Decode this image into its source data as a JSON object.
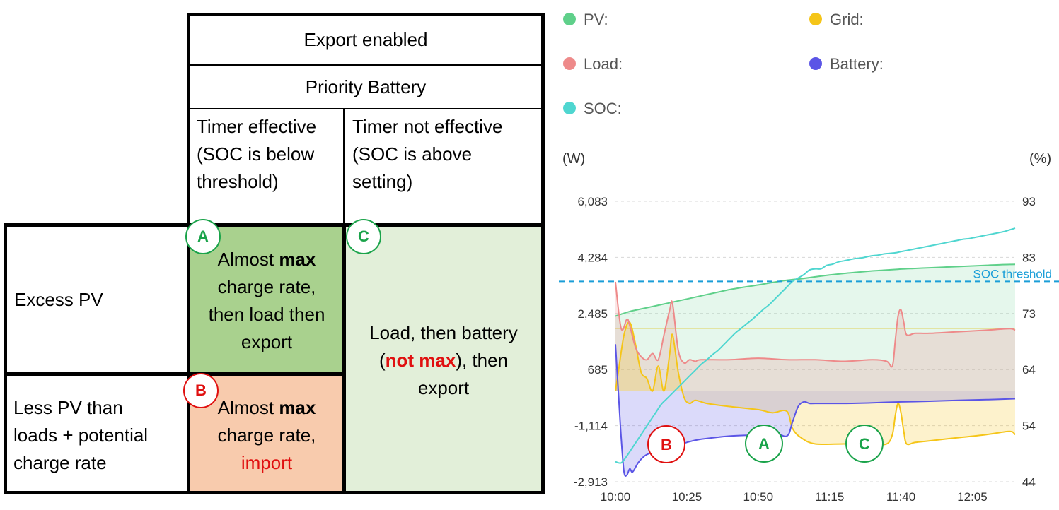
{
  "table": {
    "header_top": "Export enabled",
    "header_priority": "Priority Battery",
    "col_timer_effective": [
      "Timer effective",
      "(SOC is below",
      "threshold)"
    ],
    "col_timer_not_effective": [
      "Timer not effective",
      "(SOC is above",
      "setting)"
    ],
    "row_excess_pv": "Excess PV",
    "row_less_pv": [
      "Less PV than",
      "loads + potential",
      "charge rate"
    ],
    "cell_a": {
      "l1": "Almost ",
      "l1_bold": "max",
      "l2": "charge rate,",
      "l3": "then load then",
      "l4": "export"
    },
    "cell_b": {
      "l1": "Almost ",
      "l1_bold": "max",
      "l2": "charge rate,",
      "l3": "import"
    },
    "cell_c": {
      "l1": "Load, then battery",
      "l2_pre": "(",
      "l2_red": "not max",
      "l2_post": "), then",
      "l3": "export"
    },
    "badges": {
      "a": "A",
      "b": "B",
      "c": "C"
    },
    "colors": {
      "cell_a": "#a9d18e",
      "cell_b": "#f8cbad",
      "cell_c": "#e2efd9"
    }
  },
  "chart_data": {
    "type": "area",
    "legend": [
      {
        "label": "PV:",
        "color": "#5fd08a"
      },
      {
        "label": "Grid:",
        "color": "#f5c518"
      },
      {
        "label": "Load:",
        "color": "#ee8a8a"
      },
      {
        "label": "Battery:",
        "color": "#5b55e6"
      },
      {
        "label": "SOC:",
        "color": "#4fd6d0"
      }
    ],
    "ylabel_left": "(W)",
    "ylabel_right": "(%)",
    "yticks_left": [
      "6,083",
      "4,284",
      "2,485",
      "685",
      "-1,114",
      "-2,913"
    ],
    "yticks_right": [
      "93",
      "83",
      "73",
      "64",
      "54",
      "44"
    ],
    "ylim_left": [
      -2913,
      6083
    ],
    "ylim_right": [
      44,
      93
    ],
    "x_ticks": [
      "10:00",
      "10:25",
      "10:50",
      "11:15",
      "11:40",
      "12:05"
    ],
    "soc_threshold_label": "SOC threshold",
    "soc_threshold_value": 79,
    "annotations": [
      {
        "label": "B",
        "color": "#e01010"
      },
      {
        "label": "A",
        "color": "#1aa34a"
      },
      {
        "label": "C",
        "color": "#1aa34a"
      }
    ],
    "series": [
      {
        "name": "PV",
        "color": "#5fd08a",
        "x": [
          0,
          5,
          10,
          15,
          20,
          25,
          30,
          35,
          40,
          45,
          50,
          55,
          60,
          65,
          70,
          75,
          80,
          85,
          90,
          95,
          100,
          105,
          110,
          115,
          120,
          125,
          130,
          135,
          140
        ],
        "y": [
          2400,
          2550,
          2650,
          2750,
          2850,
          2950,
          3050,
          3150,
          3250,
          3330,
          3400,
          3480,
          3550,
          3600,
          3660,
          3720,
          3770,
          3810,
          3850,
          3880,
          3910,
          3930,
          3950,
          3970,
          3990,
          4010,
          4030,
          4050,
          4060
        ]
      },
      {
        "name": "Grid",
        "color": "#f5c518",
        "x": [
          0,
          1,
          3,
          5,
          7,
          9,
          11,
          13,
          15,
          17,
          19,
          20,
          22,
          24,
          26,
          28,
          32,
          40,
          50,
          55,
          60,
          62,
          65,
          70,
          80,
          90,
          95,
          97,
          98,
          99,
          100,
          101,
          102,
          105,
          110,
          120,
          130,
          138,
          140
        ],
        "y": [
          0,
          600,
          1800,
          2200,
          1500,
          600,
          400,
          0,
          800,
          0,
          1200,
          1800,
          600,
          -200,
          -400,
          -300,
          -400,
          -500,
          -600,
          -700,
          -650,
          -1200,
          -1500,
          -1700,
          -1700,
          -1700,
          -1700,
          -1400,
          -800,
          -400,
          -700,
          -1300,
          -1700,
          -1650,
          -1600,
          -1500,
          -1400,
          -1300,
          -1400
        ]
      },
      {
        "name": "Load",
        "color": "#ee8a8a",
        "x": [
          0,
          2,
          4,
          5,
          7,
          9,
          11,
          13,
          15,
          17,
          19,
          20,
          22,
          24,
          26,
          28,
          30,
          40,
          50,
          60,
          70,
          80,
          90,
          95,
          97,
          98,
          99,
          100,
          101,
          102,
          105,
          110,
          120,
          130,
          138,
          140
        ],
        "y": [
          3500,
          2000,
          2300,
          2100,
          1400,
          1100,
          1000,
          1200,
          1000,
          1800,
          2600,
          2800,
          1300,
          900,
          1000,
          950,
          1000,
          1000,
          1050,
          1000,
          1000,
          950,
          1000,
          950,
          800,
          1600,
          2400,
          2600,
          2200,
          1800,
          1850,
          1850,
          1900,
          1950,
          2000,
          1950
        ]
      },
      {
        "name": "Battery",
        "color": "#5b55e6",
        "x": [
          0,
          1,
          2,
          3,
          4,
          5,
          6,
          8,
          10,
          12,
          15,
          20,
          25,
          30,
          40,
          50,
          55,
          60,
          62,
          64,
          66,
          68,
          70,
          80,
          90,
          100,
          110,
          120,
          130,
          140
        ],
        "y": [
          1500,
          0,
          -1500,
          -2600,
          -2700,
          -2500,
          -2600,
          -2300,
          -2100,
          -2000,
          -1900,
          -1800,
          -1650,
          -1550,
          -1450,
          -1400,
          -1300,
          -1450,
          -1000,
          -500,
          -350,
          -400,
          -400,
          -400,
          -380,
          -350,
          -330,
          -300,
          -280,
          -250
        ]
      },
      {
        "name": "SOC",
        "color": "#4fd6d0",
        "x": [
          0,
          2,
          4,
          6,
          8,
          10,
          12,
          14,
          16,
          18,
          20,
          22,
          24,
          26,
          28,
          30,
          32,
          34,
          36,
          38,
          40,
          42,
          44,
          46,
          48,
          50,
          52,
          54,
          56,
          58,
          60,
          62,
          64,
          66,
          68,
          70,
          72,
          74,
          76,
          78,
          80,
          82,
          84,
          86,
          88,
          90,
          92,
          94,
          96,
          98,
          100,
          102,
          104,
          106,
          108,
          110,
          112,
          114,
          116,
          118,
          120,
          122,
          124,
          126,
          128,
          130,
          132,
          134,
          136,
          138,
          140
        ],
        "y": [
          47.5,
          47.3,
          48.5,
          50.0,
          51.5,
          53.0,
          54.5,
          56.0,
          57.5,
          58.5,
          59.5,
          60.5,
          61.5,
          62.5,
          63.5,
          64.5,
          65.3,
          66.2,
          67.0,
          68.0,
          69.0,
          70.0,
          70.8,
          71.6,
          72.4,
          73.3,
          74.2,
          75.0,
          76.0,
          77.0,
          78.0,
          79.0,
          79.6,
          80.2,
          81.0,
          81.2,
          81.2,
          81.8,
          82.0,
          82.4,
          82.6,
          82.8,
          83.0,
          83.1,
          83.3,
          83.5,
          83.6,
          83.8,
          83.9,
          84.0,
          84.2,
          84.4,
          84.6,
          84.8,
          85.0,
          85.2,
          85.4,
          85.6,
          85.8,
          86.0,
          86.2,
          86.4,
          86.5,
          86.7,
          86.9,
          87.1,
          87.3,
          87.5,
          87.7,
          88.0,
          88.3
        ]
      }
    ]
  }
}
